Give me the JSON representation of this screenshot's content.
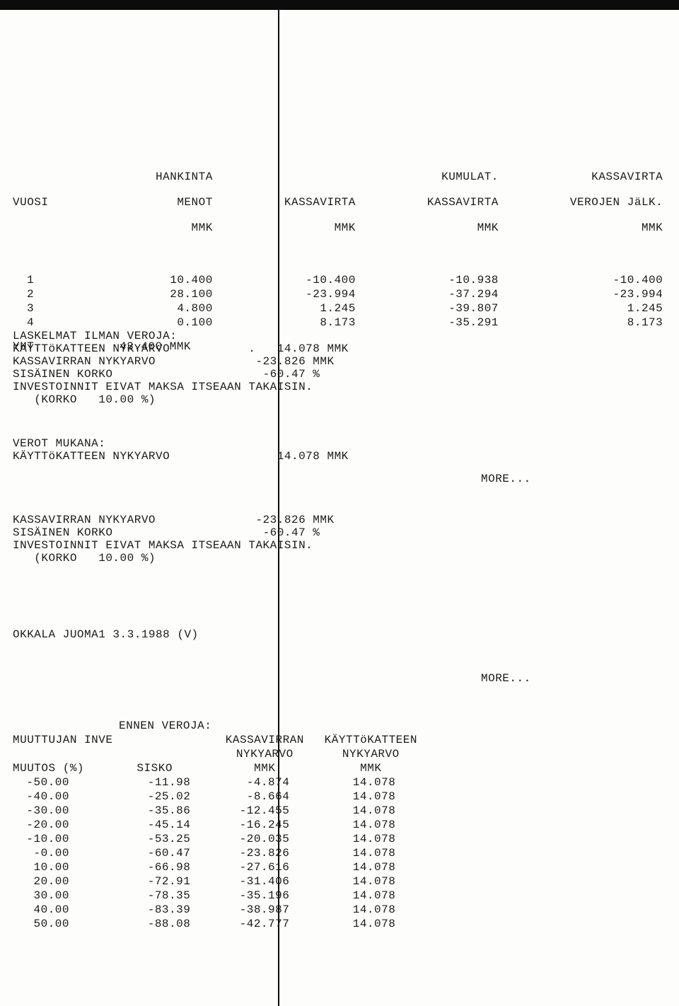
{
  "text_color": "#1a1a1a",
  "background_color": "#fdfdfc",
  "bar_color": "#0c0c0c",
  "font_family": "Courier New",
  "font_size_pt": 12,
  "top_table": {
    "type": "table",
    "headers": {
      "vuosi": "VUOSI",
      "hankinta1": "HANKINTA",
      "hankinta2": "MENOT",
      "hankinta3": "MMK",
      "kassavirta1": "KASSAVIRTA",
      "kassavirta2": "MMK",
      "kumul1a": "KUMULAT.",
      "kumul1b": "KASSAVIRTA",
      "kumul1c": "MMK",
      "kvj1a": "KASSAVIRTA",
      "kvj1b": "VEROJEN JäLK.",
      "kvj1c": "MMK",
      "kumul2a": "KUMULAT.",
      "kumul2b": "KASSAVIRTA",
      "kumul2c": "VEROJEN JäLK.",
      "kumul2d": "MMK"
    },
    "rows": [
      {
        "y": "1",
        "h": "10.400",
        "k": "-10.400",
        "kk": "-10.938",
        "kvj": "-10.400",
        "kkj": "-10.938"
      },
      {
        "y": "2",
        "h": "28.100",
        "k": "-23.994",
        "kk": "-37.294",
        "kvj": "-23.994",
        "kkj": "-37.294"
      },
      {
        "y": "3",
        "h": "4.800",
        "k": "1.245",
        "kk": "-39.807",
        "kvj": "1.245",
        "kkj": "-39.807"
      },
      {
        "y": "4",
        "h": "0.100",
        "k": "8.173",
        "kk": "-35.291",
        "kvj": "8.173",
        "kkj": "-35.291"
      }
    ],
    "total_label": "YHT.",
    "total_value": "43.400 MMK"
  },
  "calc_no_tax": {
    "heading": "LASKELMAT ILMAN VEROJA:",
    "l1_label": "KÄYTTöKATTEEN NYKYARVO",
    "l1_value": "14.078 MMK",
    "l2_label": "KASSAVIRRAN NYKYARVO",
    "l2_value": "-23.826 MMK",
    "l3_label": "SISÄINEN KORKO",
    "l3_value": "-60.47 %",
    "l4": "INVESTOINNIT EIVAT MAKSA ITSEAAN TAKAISIN.",
    "l5": "   (KORKO   10.00 %)"
  },
  "calc_tax": {
    "heading": "VEROT MUKANA:",
    "l1_label": "KÄYTTöKATTEEN NYKYARVO",
    "l1_value": "14.078 MMK"
  },
  "more1": "MORE...",
  "calc_tax2": {
    "l1_label": "KASSAVIRRAN NYKYARVO",
    "l1_value": "-23.826 MMK",
    "l2_label": "SISÄINEN KORKO",
    "l2_value": "-60.47 %",
    "l3": "INVESTOINNIT EIVAT MAKSA ITSEAAN TAKAISIN.",
    "l4": "   (KORKO   10.00 %)"
  },
  "doc_title": "OKKALA JUOMA1 3.3.1988 (V)",
  "more2": "MORE...",
  "sens": {
    "type": "table",
    "h_ennen": "ENNEN VEROJA:",
    "h_muuttujan": "MUUTTUJAN INVE",
    "h_kassav1": "KASSAVIRRAN",
    "h_kassav2": "NYKYARVO",
    "h_kassav3": "MMK",
    "h_kaytt1": "KÄYTTöKATTEEN",
    "h_kaytt2": "NYKYARVO",
    "h_kaytt3": "MMK",
    "h_muutos": "MUUTOS (%)",
    "h_sisko": "SISKO",
    "rows": [
      {
        "m": "-50.00",
        "s": "-11.98",
        "kv": "-4.874",
        "kk": "14.078"
      },
      {
        "m": "-40.00",
        "s": "-25.02",
        "kv": "-8.664",
        "kk": "14.078"
      },
      {
        "m": "-30.00",
        "s": "-35.86",
        "kv": "-12.455",
        "kk": "14.078"
      },
      {
        "m": "-20.00",
        "s": "-45.14",
        "kv": "-16.245",
        "kk": "14.078"
      },
      {
        "m": "-10.00",
        "s": "-53.25",
        "kv": "-20.035",
        "kk": "14.078"
      },
      {
        "m": "-0.00",
        "s": "-60.47",
        "kv": "-23.826",
        "kk": "14.078"
      },
      {
        "m": "10.00",
        "s": "-66.98",
        "kv": "-27.616",
        "kk": "14.078"
      },
      {
        "m": "20.00",
        "s": "-72.91",
        "kv": "-31.406",
        "kk": "14.078"
      },
      {
        "m": "30.00",
        "s": "-78.35",
        "kv": "-35.196",
        "kk": "14.078"
      },
      {
        "m": "40.00",
        "s": "-83.39",
        "kv": "-38.987",
        "kk": "14.078"
      },
      {
        "m": "50.00",
        "s": "-88.08",
        "kv": "-42.777",
        "kk": "14.078"
      }
    ]
  }
}
